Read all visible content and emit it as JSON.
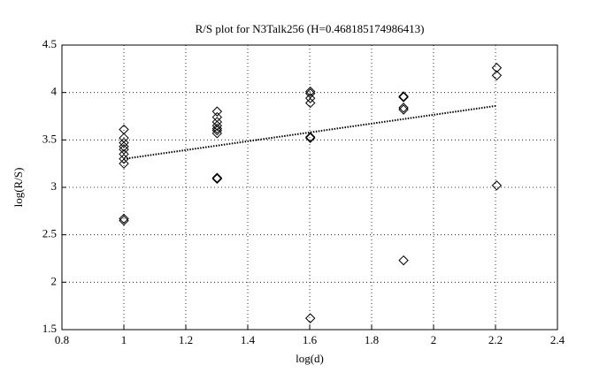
{
  "chart_data": {
    "type": "scatter",
    "title": "R/S plot for N3Talk256 (H=0.468185174986413)",
    "x_label": "log(d)",
    "y_label": "log(R/S)",
    "xlim": [
      0.8,
      2.4
    ],
    "xticks": [
      0.8,
      1,
      1.2,
      1.4,
      1.6,
      1.8,
      2,
      2.2,
      2.4
    ],
    "ylim": [
      1.5,
      4.5
    ],
    "yticks": [
      1.5,
      2,
      2.5,
      3,
      3.5,
      4,
      4.5
    ],
    "grid": true,
    "series": [
      {
        "marker": "diamond",
        "color": "#000000",
        "x": [
          1,
          1,
          1,
          1,
          1,
          1,
          1,
          1,
          1,
          1,
          1.301,
          1.301,
          1.301,
          1.301,
          1.301,
          1.301,
          1.301,
          1.301,
          1.301,
          1.602,
          1.602,
          1.602,
          1.602,
          1.602,
          1.602,
          1.602,
          1.903,
          1.903,
          1.903,
          1.903,
          1.903,
          2.204,
          2.204,
          2.204
        ],
        "values": [
          3.61,
          3.52,
          3.47,
          3.43,
          3.4,
          3.35,
          3.3,
          3.25,
          2.67,
          2.65,
          3.8,
          3.74,
          3.69,
          3.65,
          3.62,
          3.6,
          3.57,
          3.1,
          3.09,
          4.01,
          3.99,
          3.94,
          3.89,
          3.53,
          3.52,
          1.62,
          3.96,
          3.95,
          3.84,
          3.82,
          2.23,
          4.26,
          4.18,
          3.02
        ]
      },
      {
        "marker": "none",
        "line": "dotted",
        "color": "#000000",
        "x": [
          1,
          2.204
        ],
        "values": [
          3.3,
          3.86
        ]
      }
    ]
  }
}
